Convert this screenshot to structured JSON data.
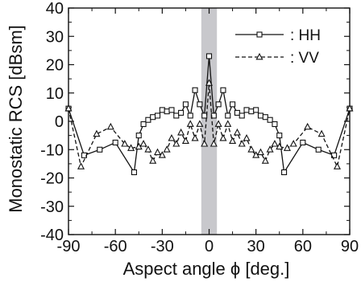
{
  "chart_data": {
    "type": "line",
    "title": "",
    "xlabel": "Aspect angle ϕ [deg.]",
    "ylabel": "Monostatic RCS [dBsm]",
    "xlim": [
      -90,
      90
    ],
    "ylim": [
      -40,
      40
    ],
    "x_ticks": [
      -90,
      -60,
      -30,
      0,
      30,
      60,
      90
    ],
    "x_tick_labels": [
      "-90",
      "-60",
      "-30",
      "0",
      "30",
      "60",
      "90"
    ],
    "y_ticks": [
      -40,
      -30,
      -20,
      -10,
      0,
      10,
      20,
      30,
      40
    ],
    "y_tick_labels": [
      "-40",
      "-30",
      "-20",
      "-10",
      "0",
      "10",
      "20",
      "30",
      "40"
    ],
    "grid": false,
    "legend": {
      "position": "top-right",
      "entries": [
        {
          "label": ": HH",
          "series": "HH"
        },
        {
          "label": ": VV",
          "series": "VV"
        }
      ]
    },
    "highlight_band": {
      "x_from": -5,
      "x_to": 5,
      "color": "#c8c8cc"
    },
    "series": [
      {
        "name": "HH",
        "line_style": "solid",
        "marker": "square",
        "color": "#111111",
        "points": [
          [
            -90,
            4.5
          ],
          [
            -80,
            -12
          ],
          [
            -70,
            -10
          ],
          [
            -60,
            -7.5
          ],
          [
            -48,
            -18
          ],
          [
            -45,
            -5
          ],
          [
            -42,
            -1
          ],
          [
            -39,
            0.5
          ],
          [
            -36,
            1.5
          ],
          [
            -33,
            2
          ],
          [
            -30,
            4
          ],
          [
            -27,
            3.5
          ],
          [
            -24,
            4
          ],
          [
            -21,
            2
          ],
          [
            -18,
            3
          ],
          [
            -15,
            6
          ],
          [
            -12,
            2
          ],
          [
            -9,
            11
          ],
          [
            -6,
            6
          ],
          [
            -3,
            2
          ],
          [
            0,
            23
          ],
          [
            3,
            2
          ],
          [
            6,
            6
          ],
          [
            9,
            11
          ],
          [
            12,
            2
          ],
          [
            15,
            6
          ],
          [
            18,
            3
          ],
          [
            21,
            2
          ],
          [
            24,
            4
          ],
          [
            27,
            3.5
          ],
          [
            30,
            4
          ],
          [
            33,
            2
          ],
          [
            36,
            1.5
          ],
          [
            39,
            0.5
          ],
          [
            42,
            -1
          ],
          [
            45,
            -5
          ],
          [
            48,
            -18
          ],
          [
            60,
            -7.5
          ],
          [
            70,
            -10
          ],
          [
            80,
            -12
          ],
          [
            90,
            4.5
          ]
        ]
      },
      {
        "name": "VV",
        "line_style": "dashed",
        "marker": "triangle",
        "color": "#111111",
        "points": [
          [
            -90,
            4.5
          ],
          [
            -82,
            -16
          ],
          [
            -72,
            -4.5
          ],
          [
            -63,
            -2
          ],
          [
            -54,
            -8
          ],
          [
            -50,
            -9.5
          ],
          [
            -45,
            -9
          ],
          [
            -42,
            -8
          ],
          [
            -39,
            -10
          ],
          [
            -36,
            -14
          ],
          [
            -33,
            -11
          ],
          [
            -30,
            -12
          ],
          [
            -27,
            -10
          ],
          [
            -24,
            -6
          ],
          [
            -21,
            -8
          ],
          [
            -18,
            -4
          ],
          [
            -15,
            -7
          ],
          [
            -12,
            -1
          ],
          [
            -9,
            -6
          ],
          [
            -6,
            -1
          ],
          [
            -3,
            -8
          ],
          [
            0,
            13.5
          ],
          [
            3,
            -8
          ],
          [
            6,
            -1
          ],
          [
            9,
            -6
          ],
          [
            12,
            -1
          ],
          [
            15,
            -7
          ],
          [
            18,
            -4
          ],
          [
            21,
            -8
          ],
          [
            24,
            -6
          ],
          [
            27,
            -10
          ],
          [
            30,
            -12
          ],
          [
            33,
            -11
          ],
          [
            36,
            -14
          ],
          [
            39,
            -10
          ],
          [
            42,
            -8
          ],
          [
            45,
            -9
          ],
          [
            50,
            -9.5
          ],
          [
            54,
            -8
          ],
          [
            63,
            -2
          ],
          [
            72,
            -4.5
          ],
          [
            82,
            -16
          ],
          [
            90,
            4.5
          ]
        ]
      }
    ]
  }
}
